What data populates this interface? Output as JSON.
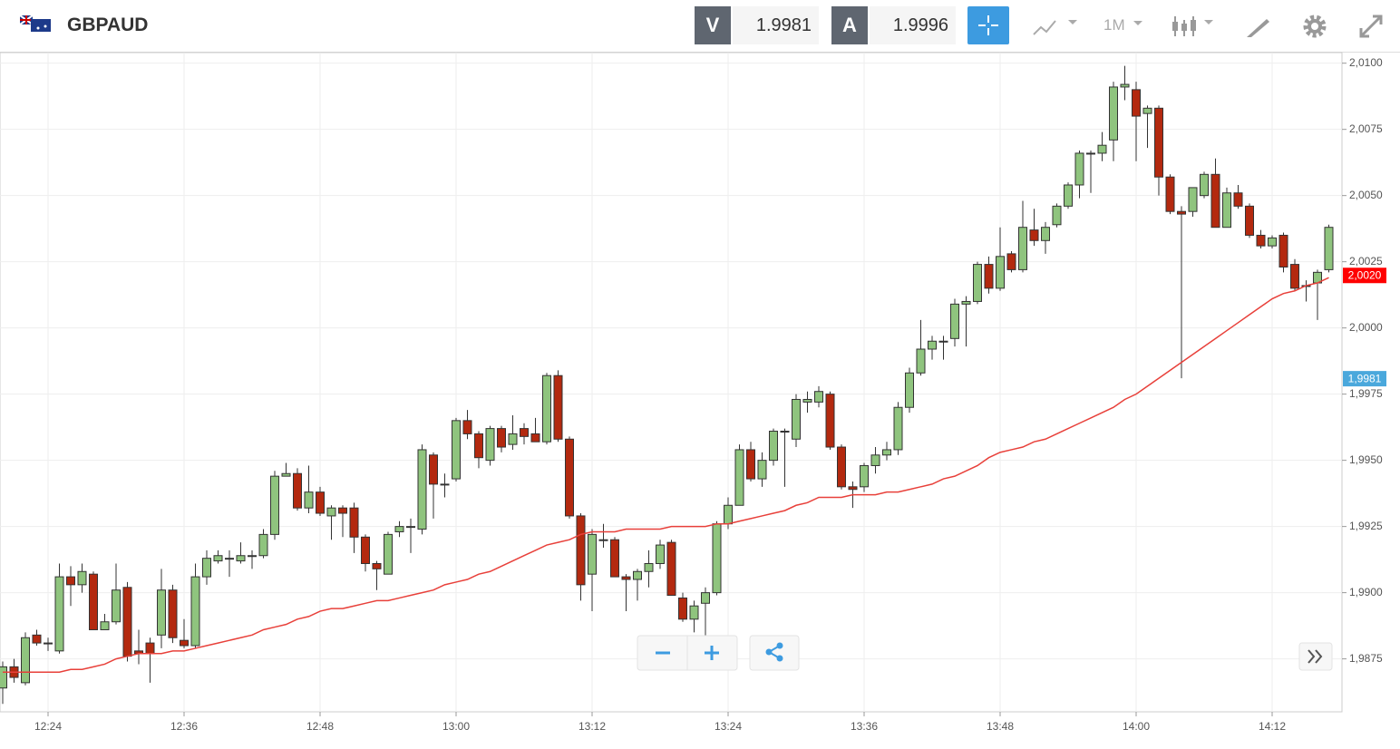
{
  "header": {
    "symbol": "GBPAUD",
    "sell_label": "V",
    "sell": "1.9981",
    "buy_label": "A",
    "buy": "1.9996",
    "interval": "1M"
  },
  "chart_data": {
    "type": "candlestick",
    "categories": [
      "12:20",
      "12:21",
      "12:22",
      "12:23",
      "12:24",
      "12:25",
      "12:26",
      "12:27",
      "12:28",
      "12:29",
      "12:30",
      "12:31",
      "12:32",
      "12:33",
      "12:34",
      "12:35",
      "12:36",
      "12:37",
      "12:38",
      "12:39",
      "12:40",
      "12:41",
      "12:42",
      "12:43",
      "12:44",
      "12:45",
      "12:46",
      "12:47",
      "12:48",
      "12:49",
      "12:50",
      "12:51",
      "12:52",
      "12:53",
      "12:54",
      "12:55",
      "12:56",
      "12:57",
      "12:58",
      "12:59",
      "13:00",
      "13:01",
      "13:02",
      "13:03",
      "13:04",
      "13:05",
      "13:06",
      "13:07",
      "13:08",
      "13:09",
      "13:10",
      "13:11",
      "13:12",
      "13:13",
      "13:14",
      "13:15",
      "13:16",
      "13:17",
      "13:18",
      "13:19",
      "13:20",
      "13:21",
      "13:22",
      "13:23",
      "13:24",
      "13:25",
      "13:26",
      "13:27",
      "13:28",
      "13:29",
      "13:30",
      "13:31",
      "13:32",
      "13:33",
      "13:34",
      "13:35",
      "13:36",
      "13:37",
      "13:38",
      "13:39",
      "13:40",
      "13:41",
      "13:42",
      "13:43",
      "13:44",
      "13:45",
      "13:46",
      "13:47",
      "13:48",
      "13:49",
      "13:50",
      "13:51",
      "13:52",
      "13:53",
      "13:54",
      "13:55",
      "13:56",
      "13:57",
      "13:58",
      "13:59",
      "14:00",
      "14:01",
      "14:02",
      "14:03",
      "14:04",
      "14:05",
      "14:06",
      "14:07",
      "14:08",
      "14:09",
      "14:10",
      "14:11",
      "14:12",
      "14:13",
      "14:14",
      "14:15",
      "14:16",
      "14:17"
    ],
    "open": [
      1.9864,
      1.9872,
      1.9866,
      1.9884,
      1.9881,
      1.9878,
      1.9906,
      1.9903,
      1.9907,
      1.9886,
      1.9889,
      1.9902,
      1.9878,
      1.9881,
      1.9884,
      1.9901,
      1.9882,
      1.988,
      1.9906,
      1.9912,
      1.9913,
      1.9912,
      1.9914,
      1.9914,
      1.9922,
      1.9944,
      1.9945,
      1.9932,
      1.9938,
      1.9929,
      1.9932,
      1.9932,
      1.9921,
      1.9911,
      1.9907,
      1.9923,
      1.9925,
      1.9924,
      1.9952,
      1.9941,
      1.9943,
      1.9965,
      1.996,
      1.995,
      1.9962,
      1.9956,
      1.9962,
      1.996,
      1.9957,
      1.9982,
      1.9958,
      1.9929,
      1.9907,
      1.992,
      1.992,
      1.9906,
      1.9905,
      1.9908,
      1.9911,
      1.9919,
      1.9898,
      1.989,
      1.9896,
      1.99,
      1.9926,
      1.9933,
      1.9954,
      1.9943,
      1.995,
      1.9961,
      1.9958,
      1.9972,
      1.9972,
      1.9975,
      1.9955,
      1.994,
      1.994,
      1.9948,
      1.9952,
      1.9954,
      1.997,
      1.9983,
      1.9992,
      1.9995,
      1.9996,
      2.0009,
      2.001,
      2.0024,
      2.0015,
      2.0028,
      2.0022,
      2.0037,
      2.0033,
      2.0039,
      2.0046,
      2.0054,
      2.0066,
      2.0066,
      2.0071,
      2.0091,
      2.009,
      2.0081,
      2.0083,
      2.0057,
      2.0044,
      2.0044,
      2.005,
      2.0058,
      2.0038,
      2.0051,
      2.0046,
      2.0035,
      2.0031,
      2.0035,
      2.0024,
      2.0016,
      2.0017,
      2.0022
    ],
    "high": [
      1.9874,
      1.9875,
      1.9885,
      1.9886,
      1.9883,
      1.9911,
      1.991,
      1.9911,
      1.9908,
      1.9892,
      1.9911,
      1.9904,
      1.9886,
      1.9883,
      1.9909,
      1.9903,
      1.989,
      1.9911,
      1.9916,
      1.9916,
      1.9916,
      1.9919,
      1.9916,
      1.9924,
      1.9946,
      1.9949,
      1.9947,
      1.9948,
      1.994,
      1.9933,
      1.9933,
      1.9934,
      1.9922,
      1.9912,
      1.9923,
      1.9927,
      1.9928,
      1.9956,
      1.9953,
      1.9945,
      1.9966,
      1.9969,
      1.9961,
      1.9963,
      1.9963,
      1.9967,
      1.9964,
      1.9966,
      1.9983,
      1.9984,
      1.9959,
      1.993,
      1.9924,
      1.9926,
      1.9921,
      1.9907,
      1.9909,
      1.9916,
      1.992,
      1.992,
      1.99,
      1.9897,
      1.9902,
      1.9927,
      1.9936,
      1.9956,
      1.9957,
      1.9953,
      1.9962,
      1.9962,
      1.9975,
      1.9976,
      1.9978,
      1.9976,
      1.9956,
      1.9942,
      1.9949,
      1.9955,
      1.9957,
      1.9972,
      1.9985,
      2.0003,
      1.9997,
      1.9997,
      2.0011,
      2.0012,
      2.0025,
      2.0027,
      2.0038,
      2.0029,
      2.0048,
      2.0045,
      2.004,
      2.0047,
      2.0055,
      2.0067,
      2.0067,
      2.0074,
      2.0093,
      2.0099,
      2.0093,
      2.0084,
      2.0084,
      2.0058,
      2.0046,
      2.0053,
      2.0059,
      2.0064,
      2.0053,
      2.0054,
      2.0047,
      2.0037,
      2.0035,
      2.0036,
      2.0026,
      2.0018,
      2.0022,
      2.0039
    ],
    "low": [
      1.9858,
      1.9866,
      1.9865,
      1.988,
      1.9878,
      1.9877,
      1.9895,
      1.99,
      1.9886,
      1.9886,
      1.9888,
      1.9874,
      1.9873,
      1.9866,
      1.9879,
      1.9881,
      1.9879,
      1.9879,
      1.9903,
      1.9911,
      1.9906,
      1.9911,
      1.9909,
      1.9913,
      1.992,
      1.9944,
      1.9931,
      1.993,
      1.9929,
      1.992,
      1.9921,
      1.9915,
      1.9908,
      1.9901,
      1.9907,
      1.9921,
      1.9915,
      1.9922,
      1.9928,
      1.9936,
      1.9942,
      1.9958,
      1.9947,
      1.9948,
      1.9953,
      1.9954,
      1.9956,
      1.9957,
      1.9956,
      1.9957,
      1.9928,
      1.9897,
      1.9893,
      1.9917,
      1.9906,
      1.9893,
      1.9897,
      1.9902,
      1.9909,
      1.9899,
      1.9889,
      1.9885,
      1.9883,
      1.9899,
      1.9924,
      1.9933,
      1.9942,
      1.994,
      1.9948,
      1.994,
      1.9955,
      1.9968,
      1.997,
      1.9954,
      1.9939,
      1.9932,
      1.9938,
      1.9945,
      1.995,
      1.9952,
      1.9968,
      1.9982,
      1.9988,
      1.9988,
      1.9993,
      1.9993,
      2.0009,
      2.0013,
      2.0014,
      2.0021,
      2.0021,
      2.0031,
      2.0028,
      2.0038,
      2.0045,
      2.0049,
      2.0051,
      2.0063,
      2.0063,
      2.0086,
      2.0063,
      2.0068,
      2.005,
      2.0043,
      1.9981,
      2.0042,
      2.0049,
      2.0038,
      2.0038,
      2.0045,
      2.0034,
      2.003,
      2.003,
      2.0021,
      2.0014,
      2.001,
      2.0003,
      2.0021
    ],
    "close": [
      1.9872,
      1.9868,
      1.9883,
      1.9881,
      1.9881,
      1.9906,
      1.9903,
      1.9908,
      1.9886,
      1.9889,
      1.9901,
      1.9876,
      1.9877,
      1.9877,
      1.9901,
      1.9883,
      1.988,
      1.9906,
      1.9913,
      1.9914,
      1.9913,
      1.9914,
      1.9914,
      1.9922,
      1.9944,
      1.9945,
      1.9932,
      1.9938,
      1.993,
      1.9932,
      1.993,
      1.9921,
      1.9911,
      1.9909,
      1.9922,
      1.9925,
      1.9925,
      1.9954,
      1.9941,
      1.9941,
      1.9965,
      1.996,
      1.9951,
      1.9962,
      1.9955,
      1.996,
      1.9959,
      1.9957,
      1.9982,
      1.9958,
      1.9929,
      1.9903,
      1.9922,
      1.992,
      1.9906,
      1.9905,
      1.9908,
      1.9911,
      1.9918,
      1.9899,
      1.989,
      1.9895,
      1.99,
      1.9926,
      1.9933,
      1.9954,
      1.9943,
      1.995,
      1.9961,
      1.9961,
      1.9973,
      1.9973,
      1.9976,
      1.9955,
      1.994,
      1.9939,
      1.9948,
      1.9952,
      1.9954,
      1.997,
      1.9983,
      1.9992,
      1.9995,
      1.9995,
      2.0009,
      2.001,
      2.0024,
      2.0015,
      2.0027,
      2.0022,
      2.0038,
      2.0033,
      2.0038,
      2.0046,
      2.0054,
      2.0066,
      2.0066,
      2.0069,
      2.0091,
      2.0092,
      2.008,
      2.0083,
      2.0057,
      2.0044,
      2.0043,
      2.0053,
      2.0058,
      2.0038,
      2.0051,
      2.0046,
      2.0035,
      2.0031,
      2.0034,
      2.0023,
      2.0015,
      2.0016,
      2.0021,
      2.0038
    ],
    "up_color": "#8fc47e",
    "down_color": "#b3290f",
    "ma": {
      "color": "#e8403a",
      "values": [
        1.987,
        1.987,
        1.987,
        1.987,
        1.987,
        1.987,
        1.9871,
        1.9871,
        1.9872,
        1.9873,
        1.9875,
        1.9876,
        1.9877,
        1.9877,
        1.9877,
        1.9878,
        1.9878,
        1.9879,
        1.988,
        1.9881,
        1.9882,
        1.9883,
        1.9884,
        1.9886,
        1.9887,
        1.9888,
        1.989,
        1.9891,
        1.9893,
        1.9894,
        1.9894,
        1.9895,
        1.9896,
        1.9897,
        1.9897,
        1.9898,
        1.9899,
        1.99,
        1.9901,
        1.9903,
        1.9904,
        1.9905,
        1.9907,
        1.9908,
        1.991,
        1.9912,
        1.9914,
        1.9916,
        1.9918,
        1.9919,
        1.992,
        1.9922,
        1.9923,
        1.9923,
        1.9923,
        1.9924,
        1.9924,
        1.9924,
        1.9924,
        1.9925,
        1.9925,
        1.9925,
        1.9925,
        1.9926,
        1.9926,
        1.9927,
        1.9928,
        1.9929,
        1.993,
        1.9931,
        1.9933,
        1.9934,
        1.9936,
        1.9936,
        1.9936,
        1.9937,
        1.9937,
        1.9937,
        1.9938,
        1.9938,
        1.9939,
        1.994,
        1.9941,
        1.9943,
        1.9944,
        1.9946,
        1.9948,
        1.9951,
        1.9953,
        1.9954,
        1.9955,
        1.9957,
        1.9958,
        1.996,
        1.9962,
        1.9964,
        1.9966,
        1.9968,
        1.997,
        1.9973,
        1.9975,
        1.9978,
        1.9981,
        1.9984,
        1.9987,
        1.999,
        1.9993,
        1.9996,
        1.9999,
        2.0002,
        2.0005,
        2.0008,
        2.0011,
        2.0013,
        2.0014,
        2.0016,
        2.0017,
        2.0019
      ]
    },
    "ylim": [
      1.9855,
      2.0104
    ],
    "yticks": [
      {
        "value": 1.9875,
        "label": "1,9875"
      },
      {
        "value": 1.99,
        "label": "1,9900"
      },
      {
        "value": 1.9925,
        "label": "1,9925"
      },
      {
        "value": 1.995,
        "label": "1,9950"
      },
      {
        "value": 1.9975,
        "label": "1,9975"
      },
      {
        "value": 2.0,
        "label": "2,0000"
      },
      {
        "value": 2.0025,
        "label": "2,0025"
      },
      {
        "value": 2.005,
        "label": "2,0050"
      },
      {
        "value": 2.0075,
        "label": "2,0075"
      },
      {
        "value": 2.01,
        "label": "2,0100"
      }
    ],
    "xticks": [
      "12:24",
      "12:36",
      "12:48",
      "13:00",
      "13:12",
      "13:24",
      "13:36",
      "13:48",
      "14:00",
      "14:12"
    ],
    "price_tags": [
      {
        "value": 2.002,
        "label": "2,0020",
        "color": "#ff0000"
      },
      {
        "value": 1.9981,
        "label": "1,9981",
        "color": "#4aa8dc"
      }
    ],
    "grid": true
  }
}
